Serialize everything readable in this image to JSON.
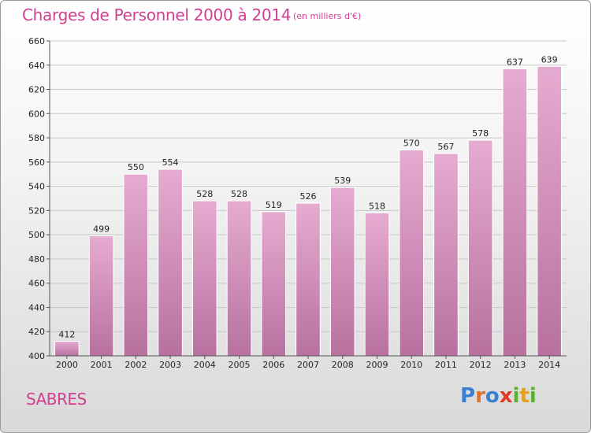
{
  "header": {
    "title": "Charges de Personnel 2000 à 2014",
    "subtitle": "(en milliers d'€)"
  },
  "footer": {
    "place": "SABRES",
    "brand": "Proxiti",
    "brand_colors": [
      "#3a7fd0",
      "#e0702a",
      "#3a7fd0",
      "#e03a2a",
      "#5ab030",
      "#e0a020",
      "#5ab030"
    ]
  },
  "colors": {
    "bar_light": "#e6abd0",
    "bar_dark": "#b8719f",
    "text_accent": "#d04090"
  },
  "chart_data": {
    "type": "bar",
    "categories": [
      "2000",
      "2001",
      "2002",
      "2003",
      "2004",
      "2005",
      "2006",
      "2007",
      "2008",
      "2009",
      "2010",
      "2011",
      "2012",
      "2013",
      "2014"
    ],
    "values": [
      412,
      499,
      550,
      554,
      528,
      528,
      519,
      526,
      539,
      518,
      570,
      567,
      578,
      637,
      639
    ],
    "ylim": [
      400,
      660
    ],
    "yticks": [
      "400",
      "420",
      "440",
      "460",
      "480",
      "500",
      "520",
      "540",
      "560",
      "580",
      "600",
      "620",
      "640",
      "660"
    ],
    "grid": true
  }
}
